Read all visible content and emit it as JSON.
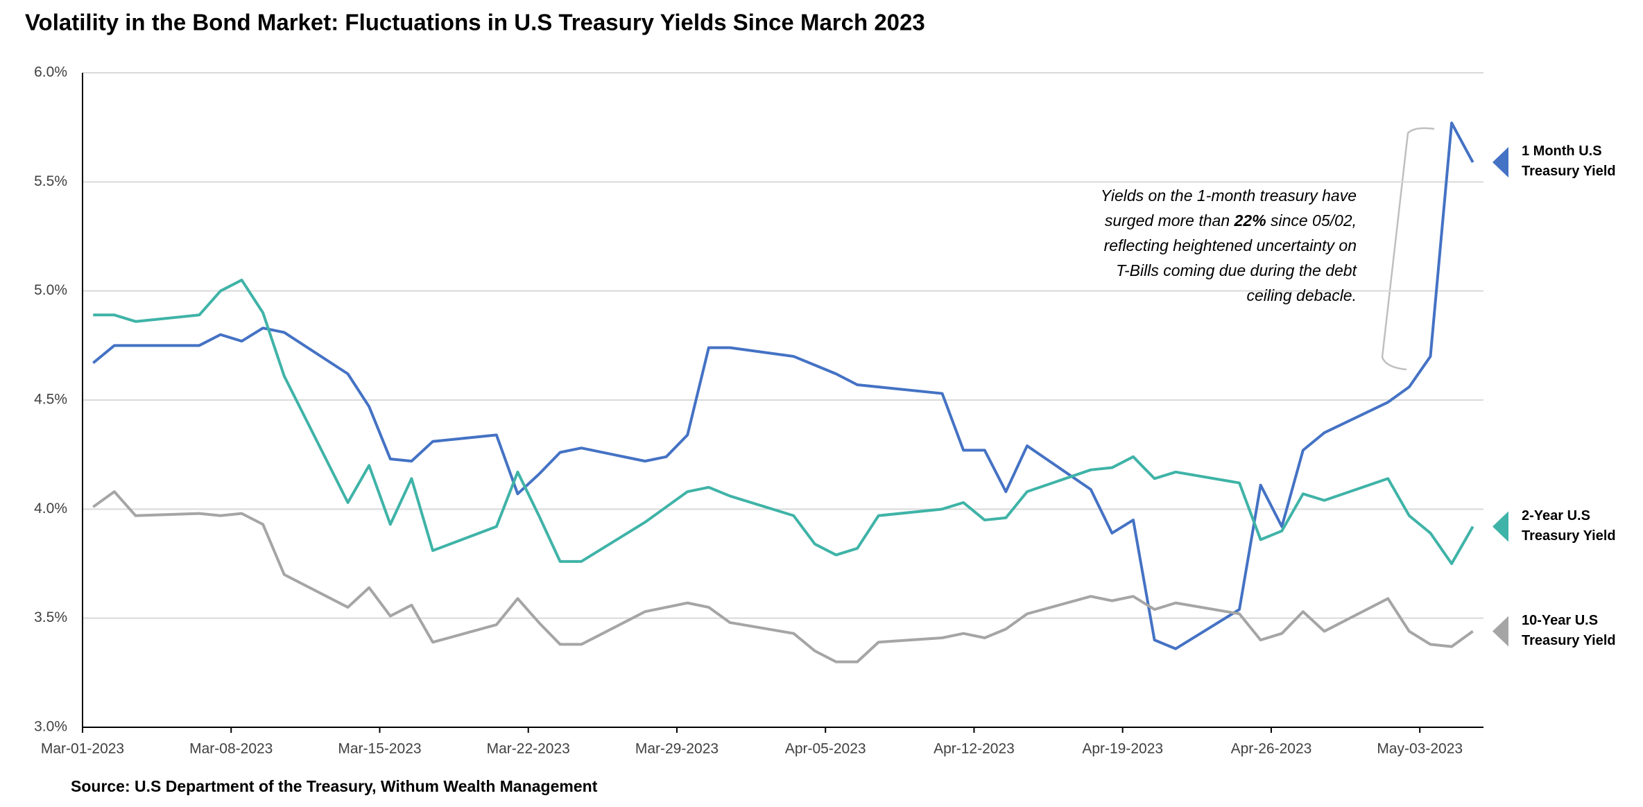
{
  "chart_data": {
    "type": "line",
    "title": "Volatility in the Bond Market: Fluctuations in U.S Treasury Yields Since March 2023",
    "source": "Source: U.S Department of the Treasury, Withum Wealth Management",
    "annotation": [
      "Yields on the 1-month treasury have surged more than ",
      "22%",
      " since 05/02, reflecting heightened uncertainty on T-Bills coming due during the debt ceiling debacle."
    ],
    "x": [
      "2023-03-01",
      "2023-03-02",
      "2023-03-03",
      "2023-03-06",
      "2023-03-07",
      "2023-03-08",
      "2023-03-09",
      "2023-03-10",
      "2023-03-13",
      "2023-03-14",
      "2023-03-15",
      "2023-03-16",
      "2023-03-17",
      "2023-03-20",
      "2023-03-21",
      "2023-03-22",
      "2023-03-23",
      "2023-03-24",
      "2023-03-27",
      "2023-03-28",
      "2023-03-29",
      "2023-03-30",
      "2023-03-31",
      "2023-04-03",
      "2023-04-04",
      "2023-04-05",
      "2023-04-06",
      "2023-04-07",
      "2023-04-10",
      "2023-04-11",
      "2023-04-12",
      "2023-04-13",
      "2023-04-14",
      "2023-04-17",
      "2023-04-18",
      "2023-04-19",
      "2023-04-20",
      "2023-04-21",
      "2023-04-24",
      "2023-04-25",
      "2023-04-26",
      "2023-04-27",
      "2023-04-28",
      "2023-05-01",
      "2023-05-02",
      "2023-05-03",
      "2023-05-04",
      "2023-05-05"
    ],
    "series": [
      {
        "name": "1 Month U.S Treasury Yield",
        "color": "#4472c4",
        "values": [
          4.67,
          4.75,
          4.75,
          4.75,
          4.8,
          4.77,
          4.83,
          4.81,
          4.62,
          4.47,
          4.23,
          4.22,
          4.31,
          4.34,
          4.07,
          4.16,
          4.26,
          4.28,
          4.22,
          4.24,
          4.34,
          4.74,
          4.74,
          4.7,
          4.66,
          4.62,
          4.57,
          4.56,
          4.53,
          4.27,
          4.27,
          4.08,
          4.29,
          4.09,
          3.89,
          3.95,
          3.4,
          3.36,
          3.54,
          4.11,
          3.92,
          4.27,
          4.35,
          4.49,
          4.56,
          4.7,
          5.77,
          5.59
        ]
      },
      {
        "name": "2-Year U.S Treasury Yield",
        "color": "#3fb3a7",
        "values": [
          4.89,
          4.89,
          4.86,
          4.89,
          5.0,
          5.05,
          4.9,
          4.61,
          4.03,
          4.2,
          3.93,
          4.14,
          3.81,
          3.92,
          4.17,
          3.97,
          3.76,
          3.76,
          3.94,
          4.01,
          4.08,
          4.1,
          4.06,
          3.97,
          3.84,
          3.79,
          3.82,
          3.97,
          4.0,
          4.03,
          3.95,
          3.96,
          4.08,
          4.18,
          4.19,
          4.24,
          4.14,
          4.17,
          4.12,
          3.86,
          3.9,
          4.07,
          4.04,
          4.14,
          3.97,
          3.89,
          3.75,
          3.92
        ]
      },
      {
        "name": "10-Year U.S Treasury Yield",
        "color": "#a5a5a5",
        "values": [
          4.01,
          4.08,
          3.97,
          3.98,
          3.97,
          3.98,
          3.93,
          3.7,
          3.55,
          3.64,
          3.51,
          3.56,
          3.39,
          3.47,
          3.59,
          3.48,
          3.38,
          3.38,
          3.53,
          3.55,
          3.57,
          3.55,
          3.48,
          3.43,
          3.35,
          3.3,
          3.3,
          3.39,
          3.41,
          3.43,
          3.41,
          3.45,
          3.52,
          3.6,
          3.58,
          3.6,
          3.54,
          3.57,
          3.52,
          3.4,
          3.43,
          3.53,
          3.44,
          3.59,
          3.44,
          3.38,
          3.37,
          3.44
        ]
      }
    ],
    "xlim": [
      "2023-03-01",
      "2023-05-06"
    ],
    "xticks": [
      {
        "value": "2023-03-01",
        "label": "Mar-01-2023"
      },
      {
        "value": "2023-03-08",
        "label": "Mar-08-2023"
      },
      {
        "value": "2023-03-15",
        "label": "Mar-15-2023"
      },
      {
        "value": "2023-03-22",
        "label": "Mar-22-2023"
      },
      {
        "value": "2023-03-29",
        "label": "Mar-29-2023"
      },
      {
        "value": "2023-04-05",
        "label": "Apr-05-2023"
      },
      {
        "value": "2023-04-12",
        "label": "Apr-12-2023"
      },
      {
        "value": "2023-04-19",
        "label": "Apr-19-2023"
      },
      {
        "value": "2023-04-26",
        "label": "Apr-26-2023"
      },
      {
        "value": "2023-05-03",
        "label": "May-03-2023"
      }
    ],
    "ylim": [
      3.0,
      6.0
    ],
    "yticks": [
      {
        "value": 3.0,
        "label": "3.0%"
      },
      {
        "value": 3.5,
        "label": "3.5%"
      },
      {
        "value": 4.0,
        "label": "4.0%"
      },
      {
        "value": 4.5,
        "label": "4.5%"
      },
      {
        "value": 5.0,
        "label": "5.0%"
      },
      {
        "value": 5.5,
        "label": "5.5%"
      },
      {
        "value": 6.0,
        "label": "6.0%"
      }
    ],
    "grid": true
  }
}
